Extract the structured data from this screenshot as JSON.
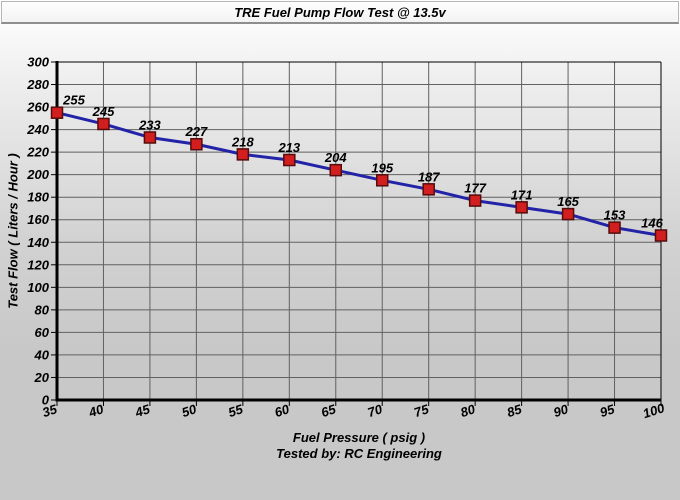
{
  "chart_data": {
    "type": "line",
    "title": "TRE Fuel Pump Flow Test @ 13.5v",
    "xlabel": "Fuel Pressure ( psig )",
    "footnote": "Tested by: RC Engineering",
    "ylabel": "Test Flow ( Liters / Hour )",
    "x": [
      35,
      40,
      45,
      50,
      55,
      60,
      65,
      70,
      75,
      80,
      85,
      90,
      95,
      100
    ],
    "values": [
      255,
      245,
      233,
      227,
      218,
      213,
      204,
      195,
      187,
      177,
      171,
      165,
      153,
      146
    ],
    "point_labels": [
      "255",
      "245",
      "233",
      "227",
      "218",
      "213",
      "204",
      "195",
      "187",
      "177",
      "171",
      "165",
      "153",
      "146"
    ],
    "xlim": [
      35,
      100
    ],
    "ylim": [
      0,
      300
    ],
    "xticks": [
      35,
      40,
      45,
      50,
      55,
      60,
      65,
      70,
      75,
      80,
      85,
      90,
      95,
      100
    ],
    "yticks": [
      0,
      20,
      40,
      60,
      80,
      100,
      120,
      140,
      160,
      180,
      200,
      220,
      240,
      260,
      280,
      300
    ],
    "grid": "on",
    "legend": "none",
    "colors": {
      "line": "#2323a8",
      "marker_fill": "#d21e1e",
      "marker_border": "#550c0c",
      "grid": "#616161",
      "axis": "#000000",
      "text": "#000000"
    }
  }
}
